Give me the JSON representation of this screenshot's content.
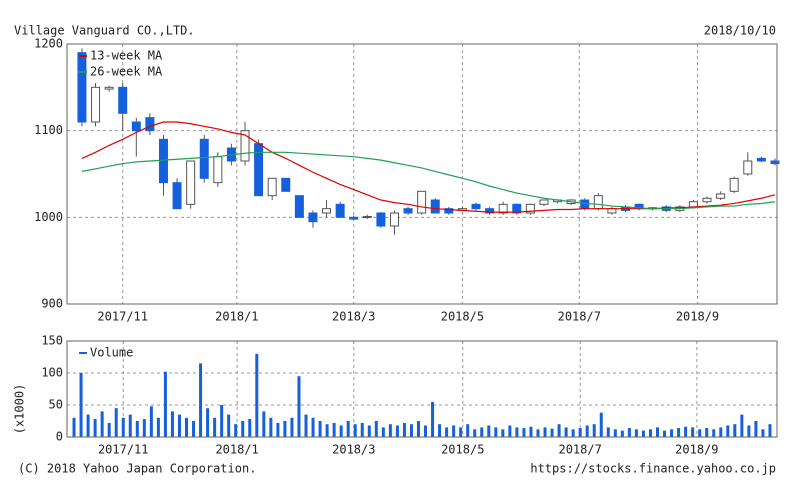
{
  "header": {
    "title": "Village Vanguard CO.,LTD.",
    "date": "2018/10/10"
  },
  "footer": {
    "copyright": "(C) 2018 Yahoo Japan Corporation.",
    "url": "https://stocks.finance.yahoo.co.jp"
  },
  "chart_data": [
    {
      "type": "candlestick",
      "x": [
        0,
        1,
        2,
        3,
        4,
        5,
        6,
        7,
        8,
        9,
        10,
        11,
        12,
        13,
        14,
        15,
        16,
        17,
        18,
        19,
        20,
        21,
        22,
        23,
        24,
        25,
        26,
        27,
        28,
        29,
        30,
        31,
        32,
        33,
        34,
        35,
        36,
        37,
        38,
        39,
        40,
        41,
        42,
        43,
        44,
        45,
        46,
        47,
        48,
        49,
        50,
        51
      ],
      "open": [
        1190,
        1110,
        1148,
        1150,
        1110,
        1115,
        1090,
        1040,
        1015,
        1090,
        1040,
        1080,
        1065,
        1085,
        1025,
        1045,
        1025,
        1005,
        1005,
        1015,
        1000,
        1000,
        1005,
        990,
        1010,
        1005,
        1020,
        1010,
        1008,
        1015,
        1010,
        1005,
        1015,
        1005,
        1015,
        1018,
        1016,
        1020,
        1010,
        1005,
        1012,
        1015,
        1010,
        1012,
        1008,
        1012,
        1018,
        1022,
        1030,
        1050,
        1068,
        1065
      ],
      "high": [
        1195,
        1155,
        1152,
        1155,
        1115,
        1120,
        1095,
        1045,
        1065,
        1095,
        1075,
        1085,
        1110,
        1090,
        1045,
        1045,
        1025,
        1008,
        1020,
        1018,
        1002,
        1003,
        1006,
        1008,
        1012,
        1030,
        1022,
        1012,
        1012,
        1017,
        1012,
        1018,
        1016,
        1016,
        1020,
        1021,
        1021,
        1022,
        1028,
        1012,
        1014,
        1016,
        1012,
        1014,
        1014,
        1020,
        1024,
        1030,
        1047,
        1075,
        1070,
        1068
      ],
      "low": [
        1105,
        1105,
        1145,
        1100,
        1070,
        1095,
        1025,
        1010,
        1010,
        1040,
        1035,
        1060,
        1060,
        1025,
        1020,
        1030,
        1000,
        988,
        1000,
        1000,
        997,
        998,
        988,
        980,
        1003,
        1003,
        1005,
        1003,
        1007,
        1008,
        1003,
        1003,
        1003,
        1003,
        1013,
        1016,
        1014,
        1008,
        1008,
        1003,
        1006,
        1008,
        1008,
        1006,
        1006,
        1010,
        1016,
        1020,
        1028,
        1048,
        1064,
        1060
      ],
      "close": [
        1110,
        1150,
        1150,
        1120,
        1100,
        1100,
        1040,
        1010,
        1065,
        1045,
        1070,
        1065,
        1100,
        1025,
        1045,
        1030,
        1000,
        995,
        1010,
        1000,
        998,
        1001,
        990,
        1005,
        1005,
        1030,
        1005,
        1005,
        1010,
        1010,
        1005,
        1015,
        1005,
        1015,
        1020,
        1020,
        1020,
        1010,
        1025,
        1010,
        1008,
        1010,
        1011,
        1008,
        1012,
        1018,
        1022,
        1027,
        1045,
        1065,
        1065,
        1062
      ],
      "up_color": "#ffffff",
      "down_color": "#1560dd",
      "lines": [
        {
          "name": "13-week MA",
          "color": "#e00000",
          "values": [
            1068,
            1075,
            1083,
            1090,
            1098,
            1105,
            1110,
            1110,
            1108,
            1105,
            1102,
            1098,
            1095,
            1085,
            1075,
            1068,
            1060,
            1052,
            1045,
            1038,
            1032,
            1026,
            1020,
            1017,
            1015,
            1012,
            1010,
            1009,
            1008,
            1007,
            1006,
            1006,
            1006,
            1007,
            1008,
            1009,
            1009,
            1010,
            1010,
            1010,
            1010,
            1010,
            1010,
            1011,
            1011,
            1012,
            1013,
            1014,
            1016,
            1019,
            1022,
            1026
          ]
        },
        {
          "name": "26-week MA",
          "color": "#20a050",
          "values": [
            1053,
            1056,
            1059,
            1062,
            1064,
            1065,
            1066,
            1067,
            1068,
            1069,
            1070,
            1072,
            1074,
            1075,
            1075,
            1075,
            1074,
            1073,
            1072,
            1071,
            1070,
            1068,
            1066,
            1063,
            1060,
            1057,
            1053,
            1049,
            1045,
            1041,
            1036,
            1032,
            1028,
            1025,
            1022,
            1020,
            1018,
            1016,
            1015,
            1013,
            1012,
            1011,
            1010,
            1010,
            1010,
            1011,
            1012,
            1013,
            1013,
            1015,
            1016,
            1018
          ]
        }
      ],
      "xlim": [
        -1.1,
        51.15
      ],
      "xticks": [
        {
          "value": 3.0,
          "label": "2017/11"
        },
        {
          "value": 11.4,
          "label": "2018/1"
        },
        {
          "value": 20.0,
          "label": "2018/3"
        },
        {
          "value": 28.0,
          "label": "2018/5"
        },
        {
          "value": 36.6,
          "label": "2018/7"
        },
        {
          "value": 45.3,
          "label": "2018/9"
        }
      ],
      "ylim": [
        900,
        1200
      ],
      "yticks": [
        900,
        1000,
        1100,
        1200
      ],
      "grid": true,
      "legend": "upper left"
    },
    {
      "type": "bar",
      "x": [
        0,
        1,
        2,
        3,
        4,
        5,
        6,
        7,
        8,
        9,
        10,
        11,
        12,
        13,
        14,
        15,
        16,
        17,
        18,
        19,
        20,
        21,
        22,
        23,
        24,
        25,
        26,
        27,
        28,
        29,
        30,
        31,
        32,
        33,
        34,
        35,
        36,
        37,
        38,
        39,
        40,
        41,
        42,
        43,
        44,
        45,
        46,
        47,
        48,
        49,
        50,
        51,
        52,
        53,
        54,
        55,
        56,
        57,
        58,
        59,
        60,
        61,
        62,
        63,
        64,
        65,
        66,
        67,
        68,
        69,
        70,
        71,
        72,
        73,
        74,
        75,
        76,
        77,
        78,
        79,
        80,
        81,
        82,
        83,
        84,
        85,
        86,
        87,
        88,
        89,
        90,
        91,
        92,
        93,
        94,
        95,
        96,
        97,
        98,
        99
      ],
      "series": [
        {
          "name": "Volume",
          "color": "#1560dd",
          "values": [
            30,
            100,
            35,
            28,
            40,
            22,
            45,
            30,
            35,
            25,
            28,
            48,
            30,
            102,
            40,
            35,
            30,
            25,
            115,
            45,
            30,
            50,
            35,
            20,
            25,
            28,
            130,
            40,
            30,
            22,
            25,
            30,
            95,
            35,
            30,
            25,
            20,
            22,
            18,
            25,
            20,
            22,
            18,
            25,
            15,
            20,
            18,
            22,
            20,
            25,
            18,
            55,
            20,
            15,
            18,
            15,
            20,
            12,
            15,
            18,
            15,
            12,
            18,
            15,
            14,
            16,
            12,
            15,
            13,
            20,
            15,
            12,
            14,
            18,
            20,
            38,
            15,
            12,
            10,
            14,
            12,
            10,
            12,
            15,
            10,
            12,
            14,
            16,
            15,
            12,
            14,
            12,
            15,
            18,
            20,
            35,
            18,
            25,
            12,
            20
          ]
        }
      ],
      "ylabel": "(x1000)",
      "xlim": [
        -1,
        100
      ],
      "xticks": [
        {
          "value": 7.0,
          "label": "2017/11"
        },
        {
          "value": 23.2,
          "label": "2018/1"
        },
        {
          "value": 39.8,
          "label": "2018/3"
        },
        {
          "value": 55.3,
          "label": "2018/5"
        },
        {
          "value": 72.0,
          "label": "2018/7"
        },
        {
          "value": 88.6,
          "label": "2018/9"
        }
      ],
      "ylim": [
        0,
        150
      ],
      "yticks": [
        0,
        50,
        100,
        150
      ],
      "grid": true,
      "legend": "upper left"
    }
  ]
}
